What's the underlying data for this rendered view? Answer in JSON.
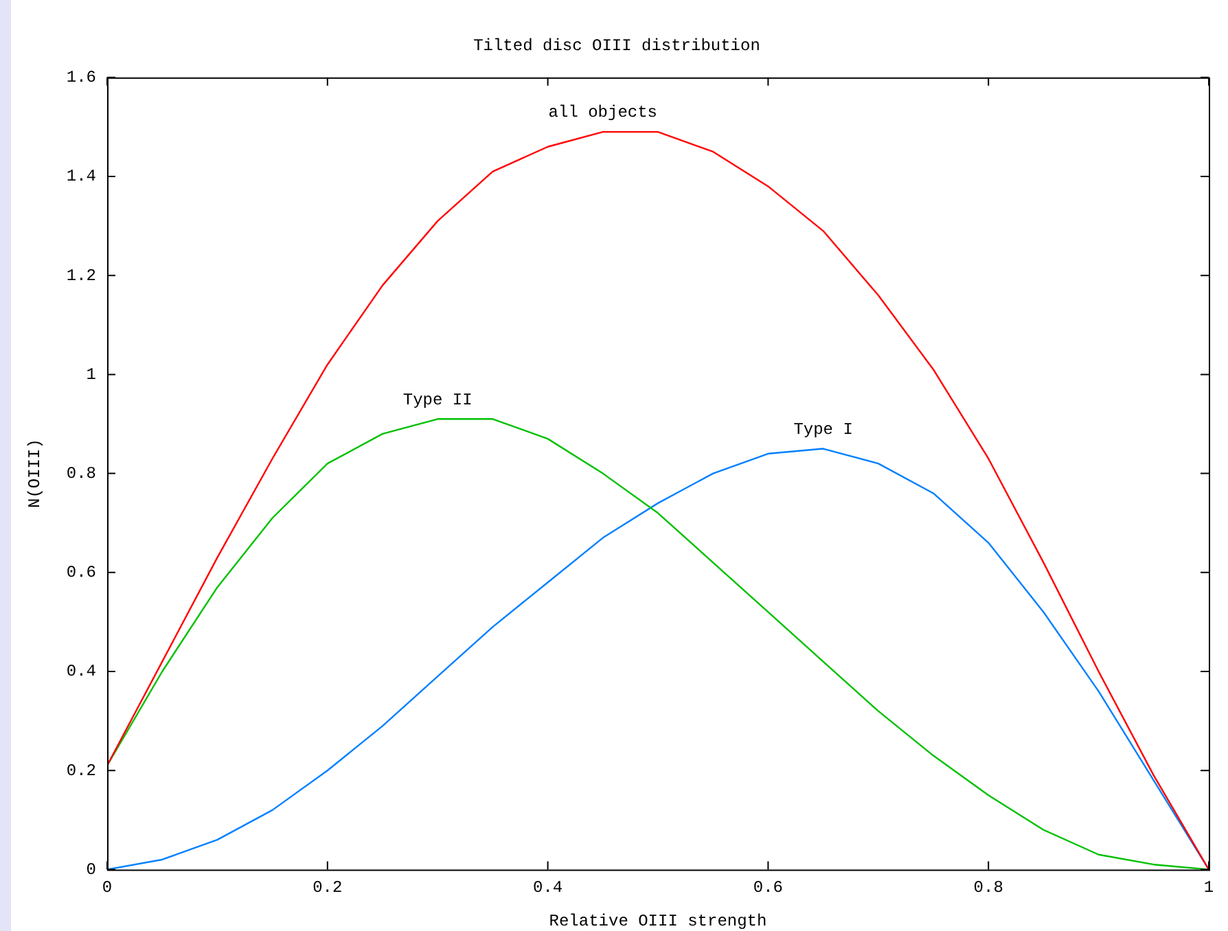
{
  "chart_data": {
    "type": "line",
    "title": "Tilted disc OIII distribution",
    "xlabel": "Relative OIII strength",
    "ylabel": "N(OIII)",
    "x": [
      0,
      0.05,
      0.1,
      0.15,
      0.2,
      0.25,
      0.3,
      0.35,
      0.4,
      0.45,
      0.5,
      0.55,
      0.6,
      0.65,
      0.7,
      0.75,
      0.8,
      0.85,
      0.9,
      0.95,
      1
    ],
    "series": [
      {
        "name": "all objects",
        "color": "#ff0000",
        "values": [
          0.21,
          0.42,
          0.63,
          0.83,
          1.02,
          1.18,
          1.31,
          1.41,
          1.46,
          1.49,
          1.49,
          1.45,
          1.38,
          1.29,
          1.16,
          1.01,
          0.83,
          0.62,
          0.4,
          0.19,
          0
        ]
      },
      {
        "name": "Type II",
        "color": "#00c000",
        "values": [
          0.21,
          0.4,
          0.57,
          0.71,
          0.82,
          0.88,
          0.91,
          0.91,
          0.87,
          0.8,
          0.72,
          0.62,
          0.52,
          0.42,
          0.32,
          0.23,
          0.15,
          0.08,
          0.03,
          0.01,
          0
        ]
      },
      {
        "name": "Type I",
        "color": "#0080ff",
        "values": [
          0,
          0.02,
          0.06,
          0.12,
          0.2,
          0.29,
          0.39,
          0.49,
          0.58,
          0.67,
          0.74,
          0.8,
          0.84,
          0.85,
          0.82,
          0.76,
          0.66,
          0.52,
          0.36,
          0.18,
          0
        ]
      }
    ],
    "xlim": [
      0,
      1
    ],
    "ylim": [
      0,
      1.6
    ],
    "xticks": [
      0,
      0.2,
      0.4,
      0.6,
      0.8,
      1
    ],
    "yticks": [
      0,
      0.2,
      0.4,
      0.6,
      0.8,
      1,
      1.2,
      1.4,
      1.6
    ],
    "grid": false,
    "legend": false,
    "marker": "none",
    "line_style": "solid"
  }
}
